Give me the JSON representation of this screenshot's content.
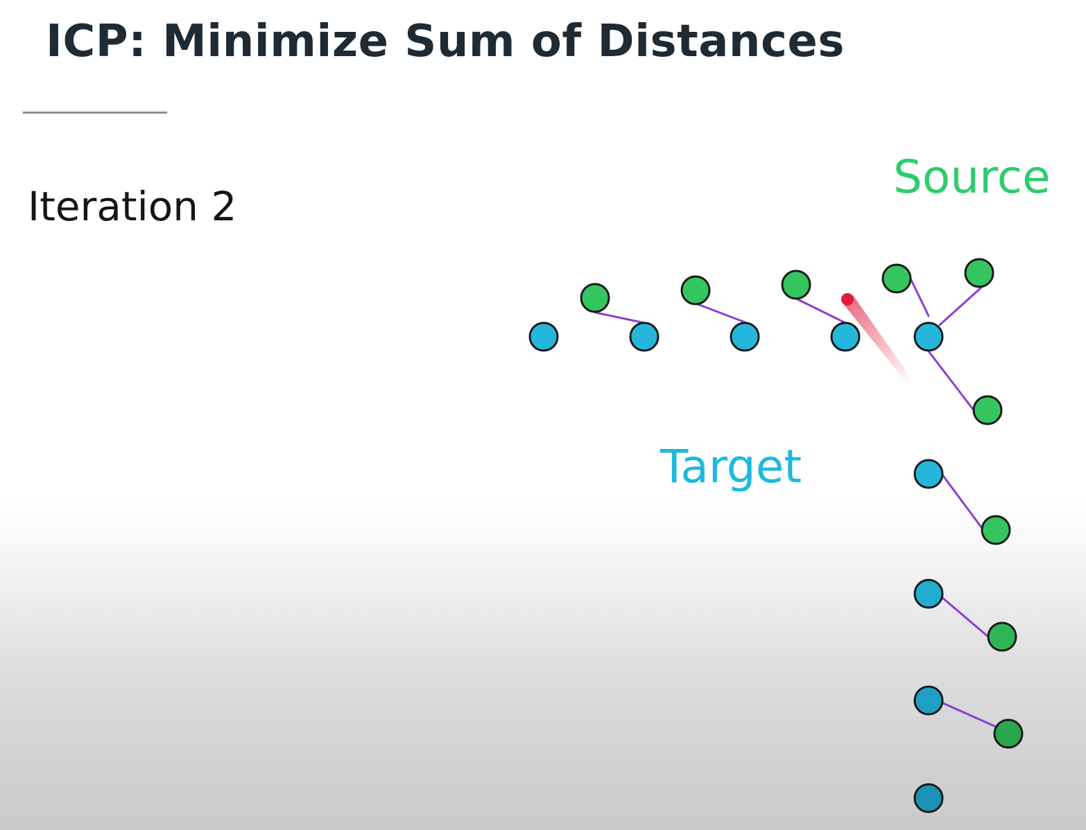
{
  "slide": {
    "title": "ICP: Minimize Sum of Distances",
    "iteration": "Iteration 2"
  },
  "labels": {
    "source": "Source",
    "target": "Target"
  },
  "colors": {
    "source": "#35c55e",
    "target": "#25b6dc",
    "correspondence": "#8a3fd6",
    "pointer": "#e21b3c",
    "title": "#1f2a33"
  }
}
